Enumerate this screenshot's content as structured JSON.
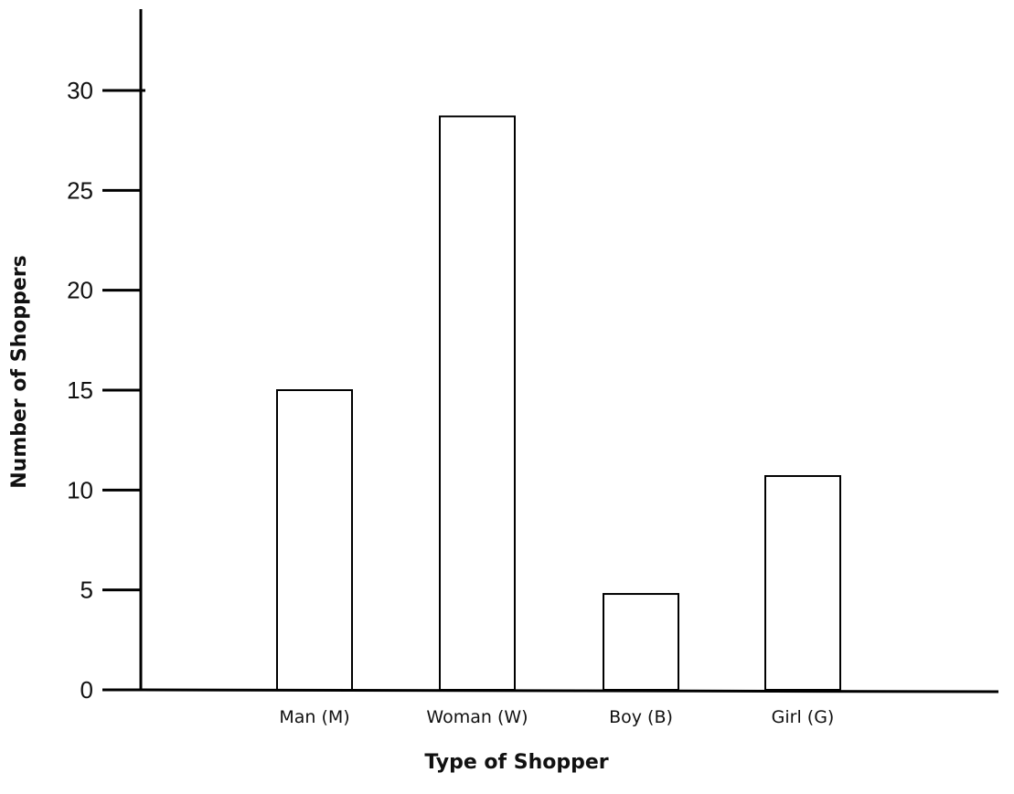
{
  "chart_data": {
    "type": "bar",
    "categories": [
      "Man (M)",
      "Woman (W)",
      "Boy (B)",
      "Girl (G)"
    ],
    "values": [
      15,
      28.7,
      4.8,
      10.7
    ],
    "title": "",
    "xlabel": "Type of Shopper",
    "ylabel": "Number of Shoppers",
    "yticks": [
      "0",
      "5",
      "10",
      "15",
      "20",
      "25",
      "30"
    ],
    "ylim": [
      0,
      30
    ],
    "grid": false,
    "legend": "none",
    "colors": {
      "bar_fill": "#ffffff",
      "bar_stroke": "#000000",
      "axis": "#000000"
    }
  }
}
